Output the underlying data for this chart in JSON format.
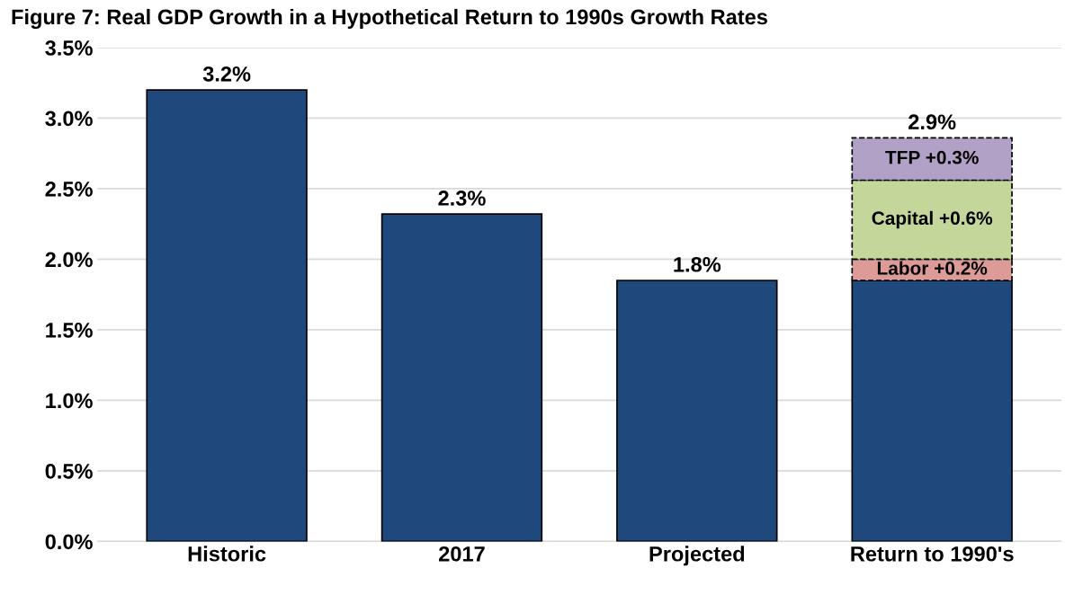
{
  "chart_data": {
    "type": "bar",
    "title": "Figure 7: Real GDP Growth in a Hypothetical Return to 1990s Growth Rates",
    "categories": [
      "Historic",
      "2017",
      "Projected",
      "Return to 1990's"
    ],
    "stacked": true,
    "series": [
      {
        "color": "#1f497d",
        "line_style": "solid",
        "values": [
          3.2,
          2.32,
          1.85,
          1.85
        ]
      },
      {
        "color": "#dd9b98",
        "line_style": "dashed",
        "values": [
          null,
          null,
          null,
          0.15
        ],
        "value_labels": [
          null,
          null,
          null,
          "Labor +0.2%"
        ]
      },
      {
        "color": "#c4d79b",
        "line_style": "dashed",
        "values": [
          null,
          null,
          null,
          0.56
        ],
        "value_labels": [
          null,
          null,
          null,
          "Capital +0.6%"
        ]
      },
      {
        "color": "#b2a1c7",
        "line_style": "dashed",
        "values": [
          null,
          null,
          null,
          0.3
        ],
        "value_labels": [
          null,
          null,
          null,
          "TFP +0.3%"
        ]
      }
    ],
    "totals": [
      "3.2%",
      "2.3%",
      "1.8%",
      "2.9%"
    ],
    "ylim": [
      0,
      3.5
    ],
    "yticks": [
      {
        "value": 0,
        "label": "0.0%"
      },
      {
        "value": 0.5,
        "label": "0.5%"
      },
      {
        "value": 1.0,
        "label": "1.0%"
      },
      {
        "value": 1.5,
        "label": "1.5%"
      },
      {
        "value": 2.0,
        "label": "2.0%"
      },
      {
        "value": 2.5,
        "label": "2.5%"
      },
      {
        "value": 3.0,
        "label": "3.0%"
      },
      {
        "value": 3.5,
        "label": "3.5%"
      }
    ],
    "grid": "y"
  }
}
